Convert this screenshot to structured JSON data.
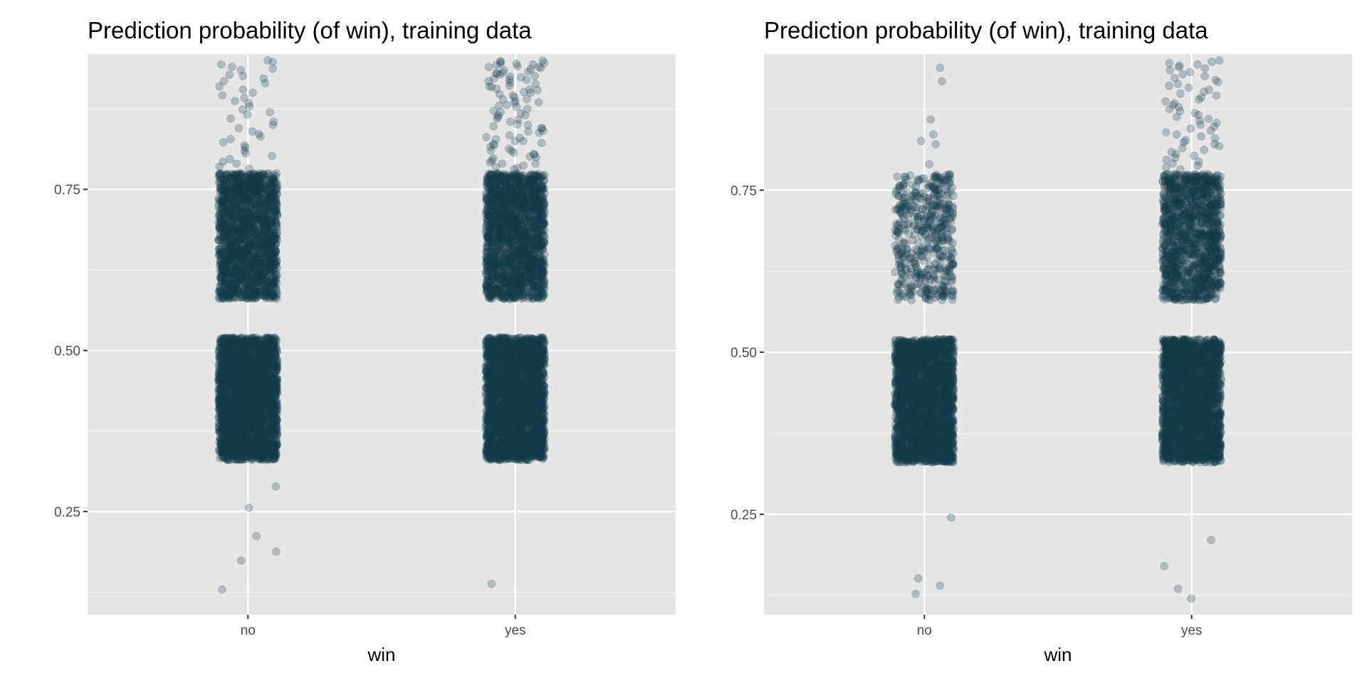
{
  "colors": {
    "panel_background": "#e5e5e5",
    "grid_major": "#ffffff",
    "grid_minor": "#f2f2f2",
    "point": "#123b4c",
    "tick_text": "#4d4d4d",
    "tick_mark": "#333333"
  },
  "chart_data": [
    {
      "type": "scatter",
      "subtype": "jitter-strip",
      "title": "Prediction probability (of win), training data",
      "xlabel": "win",
      "ylabel": "",
      "categories": [
        "no",
        "yes"
      ],
      "ylim": [
        0.09,
        0.96
      ],
      "y_ticks": [
        0.25,
        0.5,
        0.75
      ],
      "y_tick_labels": [
        "0.25",
        "0.50",
        "0.75"
      ],
      "grid": true,
      "point_alpha": 0.25,
      "jitter_width": 0.11,
      "dense_bands": [
        {
          "category": "no",
          "y_range": [
            0.33,
            0.52
          ],
          "count": 2600
        },
        {
          "category": "no",
          "y_range": [
            0.58,
            0.775
          ],
          "count": 1800
        },
        {
          "category": "yes",
          "y_range": [
            0.33,
            0.52
          ],
          "count": 2600
        },
        {
          "category": "yes",
          "y_range": [
            0.58,
            0.775
          ],
          "count": 1800
        }
      ],
      "sparse_points": [
        {
          "category": "no",
          "y": [
            0.95,
            0.948,
            0.944,
            0.94,
            0.937,
            0.935,
            0.928,
            0.926,
            0.922,
            0.918,
            0.915,
            0.91,
            0.905,
            0.9,
            0.896,
            0.892,
            0.887,
            0.884,
            0.879,
            0.874,
            0.87,
            0.866,
            0.86,
            0.855,
            0.85,
            0.845,
            0.84,
            0.836,
            0.832,
            0.828,
            0.823,
            0.818,
            0.815,
            0.81,
            0.806,
            0.802,
            0.797,
            0.793,
            0.79,
            0.785,
            0.782,
            0.256,
            0.289,
            0.212,
            0.188,
            0.174,
            0.129
          ]
        },
        {
          "category": "yes",
          "y": [
            0.95,
            0.949,
            0.948,
            0.946,
            0.945,
            0.944,
            0.943,
            0.941,
            0.94,
            0.938,
            0.937,
            0.935,
            0.933,
            0.931,
            0.93,
            0.928,
            0.926,
            0.924,
            0.922,
            0.92,
            0.918,
            0.916,
            0.914,
            0.911,
            0.909,
            0.906,
            0.904,
            0.901,
            0.898,
            0.896,
            0.893,
            0.89,
            0.887,
            0.884,
            0.881,
            0.878,
            0.875,
            0.872,
            0.868,
            0.865,
            0.862,
            0.858,
            0.855,
            0.851,
            0.848,
            0.845,
            0.841,
            0.838,
            0.834,
            0.831,
            0.828,
            0.825,
            0.822,
            0.819,
            0.816,
            0.813,
            0.81,
            0.807,
            0.804,
            0.801,
            0.798,
            0.795,
            0.792,
            0.79,
            0.787,
            0.785,
            0.783,
            0.781,
            0.94,
            0.93,
            0.92,
            0.91,
            0.9,
            0.89,
            0.88,
            0.87,
            0.86,
            0.85,
            0.84,
            0.83,
            0.82,
            0.81,
            0.8,
            0.79,
            0.945,
            0.925,
            0.905,
            0.885,
            0.865,
            0.845,
            0.825,
            0.805,
            0.138
          ]
        }
      ]
    },
    {
      "type": "scatter",
      "subtype": "jitter-strip",
      "title": "Prediction probability (of win), training data",
      "xlabel": "win",
      "ylabel": "",
      "categories": [
        "no",
        "yes"
      ],
      "ylim": [
        0.095,
        0.96
      ],
      "y_ticks": [
        0.25,
        0.5,
        0.75
      ],
      "y_tick_labels": [
        "0.25",
        "0.50",
        "0.75"
      ],
      "grid": true,
      "point_alpha": 0.25,
      "jitter_width": 0.11,
      "dense_bands": [
        {
          "category": "no",
          "y_range": [
            0.33,
            0.52
          ],
          "count": 2400
        },
        {
          "category": "no",
          "y_range": [
            0.58,
            0.775
          ],
          "count": 480
        },
        {
          "category": "yes",
          "y_range": [
            0.33,
            0.52
          ],
          "count": 2400
        },
        {
          "category": "yes",
          "y_range": [
            0.58,
            0.775
          ],
          "count": 1300
        }
      ],
      "sparse_points": [
        {
          "category": "no",
          "y": [
            0.939,
            0.918,
            0.859,
            0.836,
            0.826,
            0.821,
            0.79,
            0.245,
            0.151,
            0.14,
            0.127
          ]
        },
        {
          "category": "yes",
          "y": [
            0.95,
            0.948,
            0.946,
            0.944,
            0.942,
            0.94,
            0.938,
            0.935,
            0.932,
            0.929,
            0.926,
            0.923,
            0.92,
            0.917,
            0.914,
            0.911,
            0.908,
            0.905,
            0.902,
            0.899,
            0.896,
            0.893,
            0.89,
            0.887,
            0.884,
            0.881,
            0.878,
            0.875,
            0.872,
            0.869,
            0.866,
            0.863,
            0.86,
            0.857,
            0.854,
            0.851,
            0.848,
            0.845,
            0.842,
            0.839,
            0.836,
            0.833,
            0.83,
            0.827,
            0.824,
            0.821,
            0.818,
            0.815,
            0.812,
            0.809,
            0.806,
            0.803,
            0.8,
            0.797,
            0.794,
            0.791,
            0.788,
            0.785,
            0.782,
            0.21,
            0.17,
            0.135,
            0.12
          ]
        }
      ]
    }
  ]
}
